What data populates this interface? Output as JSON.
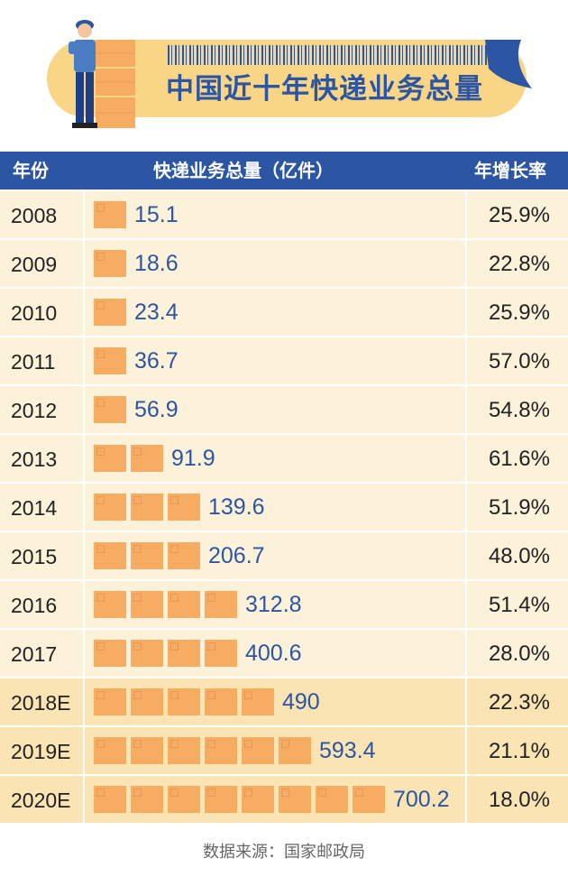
{
  "title": "中国近十年快递业务总量",
  "source": "数据来源：国家邮政局",
  "colors": {
    "header_blue": "#2c55a3",
    "banner_yellow": "#f9d686",
    "box_orange": "#f6ad62",
    "row_light": "#fcf1d9",
    "row_forecast": "#fae4b4",
    "value_blue": "#2c55a3"
  },
  "icons": [
    "delivery-worker-icon",
    "package-box-icon",
    "barcode-icon"
  ],
  "chart_data": {
    "type": "table",
    "columns": [
      "年份",
      "快递业务总量（亿件）",
      "年增长率"
    ],
    "rows": [
      {
        "year": "2008",
        "volume": 15.1,
        "volume_label": "15.1",
        "growth": "25.9%",
        "boxes": 1,
        "forecast": false
      },
      {
        "year": "2009",
        "volume": 18.6,
        "volume_label": "18.6",
        "growth": "22.8%",
        "boxes": 1,
        "forecast": false
      },
      {
        "year": "2010",
        "volume": 23.4,
        "volume_label": "23.4",
        "growth": "25.9%",
        "boxes": 1,
        "forecast": false
      },
      {
        "year": "2011",
        "volume": 36.7,
        "volume_label": "36.7",
        "growth": "57.0%",
        "boxes": 1,
        "forecast": false
      },
      {
        "year": "2012",
        "volume": 56.9,
        "volume_label": "56.9",
        "growth": "54.8%",
        "boxes": 1,
        "forecast": false
      },
      {
        "year": "2013",
        "volume": 91.9,
        "volume_label": "91.9",
        "growth": "61.6%",
        "boxes": 2,
        "forecast": false
      },
      {
        "year": "2014",
        "volume": 139.6,
        "volume_label": "139.6",
        "growth": "51.9%",
        "boxes": 3,
        "forecast": false
      },
      {
        "year": "2015",
        "volume": 206.7,
        "volume_label": "206.7",
        "growth": "48.0%",
        "boxes": 3,
        "forecast": false
      },
      {
        "year": "2016",
        "volume": 312.8,
        "volume_label": "312.8",
        "growth": "51.4%",
        "boxes": 4,
        "forecast": false
      },
      {
        "year": "2017",
        "volume": 400.6,
        "volume_label": "400.6",
        "growth": "28.0%",
        "boxes": 4,
        "forecast": false
      },
      {
        "year": "2018E",
        "volume": 490,
        "volume_label": "490",
        "growth": "22.3%",
        "boxes": 5,
        "forecast": true
      },
      {
        "year": "2019E",
        "volume": 593.4,
        "volume_label": "593.4",
        "growth": "21.1%",
        "boxes": 6,
        "forecast": true
      },
      {
        "year": "2020E",
        "volume": 700.2,
        "volume_label": "700.2",
        "growth": "18.0%",
        "boxes": 8,
        "forecast": true
      }
    ]
  }
}
